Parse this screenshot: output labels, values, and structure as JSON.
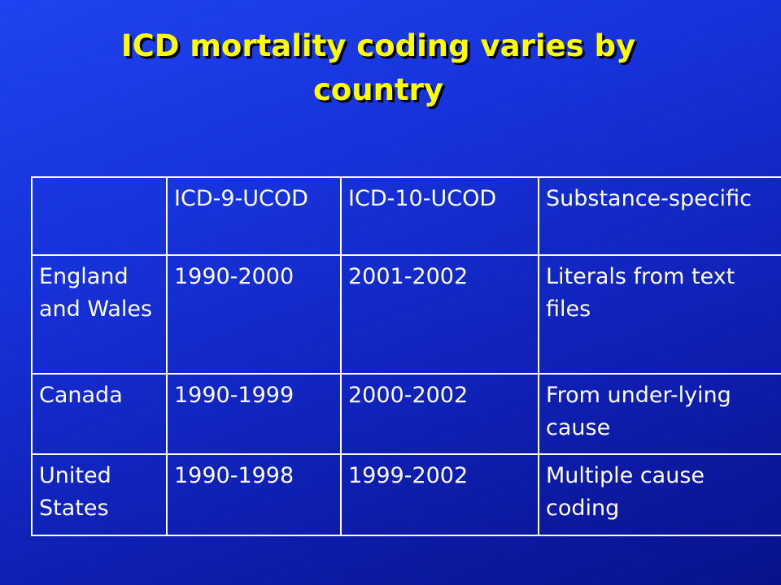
{
  "title": {
    "line1": "ICD mortality coding varies by",
    "line2": "country"
  },
  "table": {
    "header": [
      "",
      "ICD-9-UCOD",
      "ICD-10-UCOD",
      "Substance-specific"
    ],
    "rows": [
      {
        "country": "England and Wales",
        "icd9": "1990-2000",
        "icd10": "2001-2002",
        "substance": "Literals from text files"
      },
      {
        "country": "Canada",
        "icd9": "1990-1999",
        "icd10": "2000-2002",
        "substance": "From under-lying cause"
      },
      {
        "country": "United States",
        "icd9": "1990-1998",
        "icd10": "1999-2002",
        "substance": "Multiple cause coding"
      }
    ]
  },
  "colors": {
    "background": "#1631d8",
    "title": "#ffff00",
    "text": "#ffffff",
    "border": "#ffffff"
  }
}
